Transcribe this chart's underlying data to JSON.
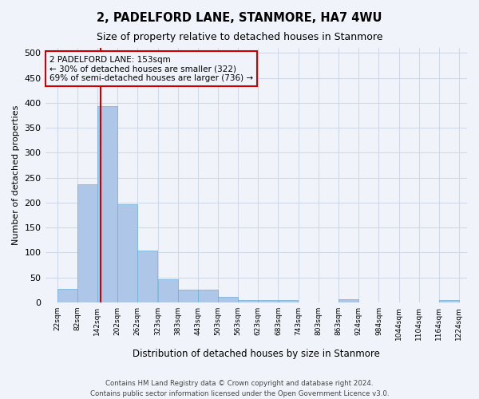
{
  "title1": "2, PADELFORD LANE, STANMORE, HA7 4WU",
  "title2": "Size of property relative to detached houses in Stanmore",
  "xlabel": "Distribution of detached houses by size in Stanmore",
  "ylabel": "Number of detached properties",
  "bar_color": "#aec6e8",
  "bar_edge_color": "#6aaed6",
  "grid_color": "#d0d8e8",
  "vline_color": "#cc0000",
  "vline_x": 153,
  "annotation_box_text": "2 PADELFORD LANE: 153sqm\n← 30% of detached houses are smaller (322)\n69% of semi-detached houses are larger (736) →",
  "annotation_box_color": "#cc0000",
  "footer1": "Contains HM Land Registry data © Crown copyright and database right 2024.",
  "footer2": "Contains public sector information licensed under the Open Government Licence v3.0.",
  "bin_edges": [
    22,
    82,
    142,
    202,
    262,
    323,
    383,
    443,
    503,
    563,
    623,
    683,
    743,
    803,
    863,
    924,
    984,
    1044,
    1104,
    1164,
    1224
  ],
  "bin_counts": [
    28,
    236,
    394,
    197,
    104,
    47,
    25,
    25,
    12,
    5,
    5,
    5,
    0,
    0,
    6,
    0,
    0,
    0,
    0,
    5
  ],
  "ylim": [
    0,
    510
  ],
  "background_color": "#f0f4fa"
}
